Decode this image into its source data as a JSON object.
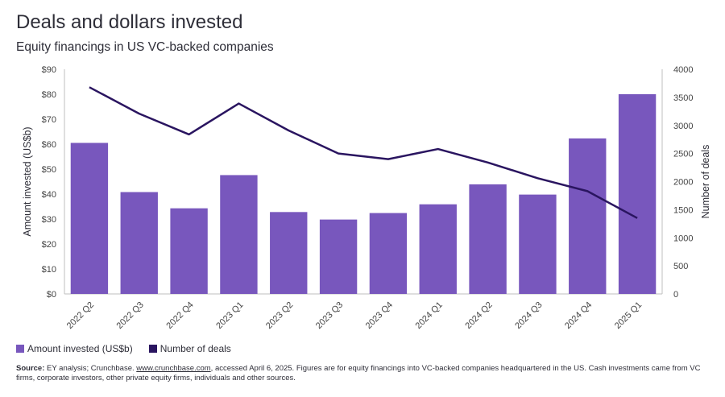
{
  "header": {
    "title": "Deals and dollars invested",
    "subtitle": "Equity financings in US VC-backed companies"
  },
  "colors": {
    "bar": "#7857bd",
    "line": "#2a1560",
    "grid": "#e6e6e6",
    "axis": "#bfbfbf"
  },
  "chart_data": {
    "type": "bar",
    "categories": [
      "2022 Q2",
      "2022 Q3",
      "2022 Q4",
      "2023 Q1",
      "2023 Q2",
      "2023 Q3",
      "2023 Q4",
      "2024 Q1",
      "2024 Q2",
      "2024 Q3",
      "2024 Q4",
      "2025 Q1"
    ],
    "series": [
      {
        "name": "Amount invested (US$b)",
        "type": "bar",
        "axis": "left",
        "values": [
          60.5,
          40.8,
          34.3,
          47.6,
          32.8,
          29.8,
          32.4,
          35.9,
          43.9,
          39.8,
          62.3,
          80.0
        ]
      },
      {
        "name": "Number of deals",
        "type": "line",
        "axis": "right",
        "values": [
          3680,
          3210,
          2840,
          3390,
          2910,
          2500,
          2400,
          2580,
          2340,
          2060,
          1830,
          1350
        ]
      }
    ],
    "ylabel": "Amount invested (US$b)",
    "y2label": "Number of deals",
    "ylim": [
      0,
      90
    ],
    "y2lim": [
      0,
      4000
    ],
    "yticks": [
      "$0",
      "$10",
      "$20",
      "$30",
      "$40",
      "$50",
      "$60",
      "$70",
      "$80",
      "$90"
    ],
    "y2ticks": [
      "0",
      "500",
      "1000",
      "1500",
      "2000",
      "2500",
      "3000",
      "3500",
      "4000"
    ],
    "legend_position": "bottom-left",
    "grid": false
  },
  "legend": {
    "bar_label": "Amount invested (US$b)",
    "line_label": "Number of deals"
  },
  "source": {
    "label": "Source:",
    "text_before": " EY analysis; Crunchbase. ",
    "link": "www.crunchbase.com",
    "text_after": ", accessed April 6, 2025. Figures are for equity financings into VC-backed companies headquartered in the US. Cash investments came from VC firms, corporate investors, other private equity firms, individuals and other sources."
  }
}
